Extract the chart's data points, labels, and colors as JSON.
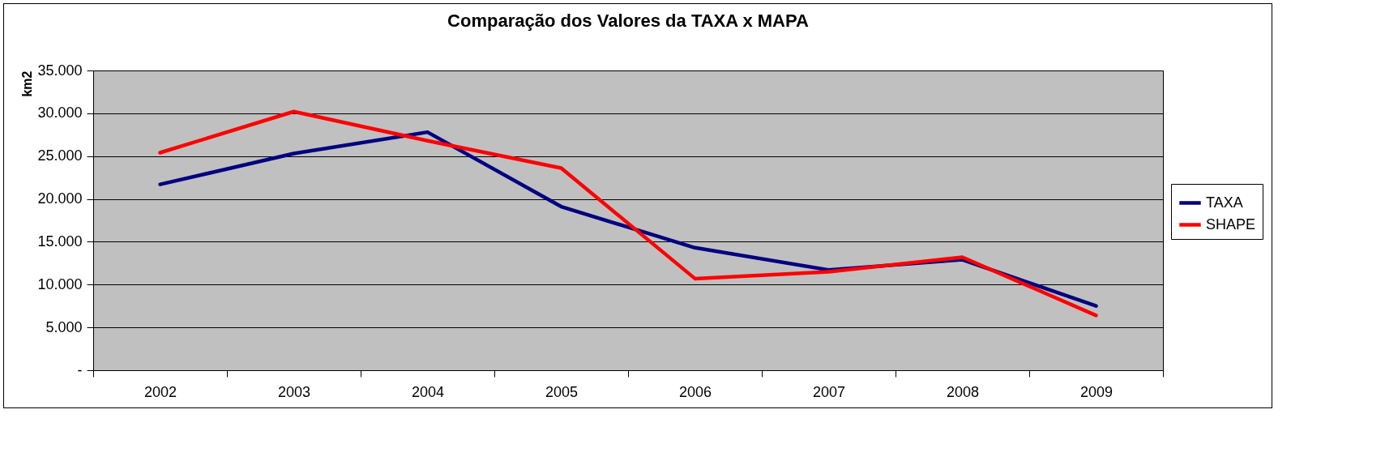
{
  "chart_data": {
    "type": "line",
    "title": "Comparação dos Valores da TAXA x MAPA",
    "ylabel": "km2",
    "categories": [
      "2002",
      "2003",
      "2004",
      "2005",
      "2006",
      "2007",
      "2008",
      "2009"
    ],
    "series": [
      {
        "name": "TAXA",
        "color": "#000080",
        "values": [
          21700,
          25300,
          27800,
          19100,
          14300,
          11700,
          12900,
          7500
        ]
      },
      {
        "name": "SHAPE",
        "color": "#ff0000",
        "values": [
          25400,
          30200,
          26800,
          23600,
          10700,
          11500,
          13200,
          6400
        ]
      }
    ],
    "ylim": [
      0,
      35000
    ],
    "yticks": [
      {
        "value": 0,
        "label": "-"
      },
      {
        "value": 5000,
        "label": "5.000"
      },
      {
        "value": 10000,
        "label": "10.000"
      },
      {
        "value": 15000,
        "label": "15.000"
      },
      {
        "value": 20000,
        "label": "20.000"
      },
      {
        "value": 25000,
        "label": "25.000"
      },
      {
        "value": 30000,
        "label": "30.000"
      },
      {
        "value": 35000,
        "label": "35.000"
      }
    ],
    "grid": "y",
    "legend": "right",
    "marker": "none",
    "line_style": "solid"
  }
}
